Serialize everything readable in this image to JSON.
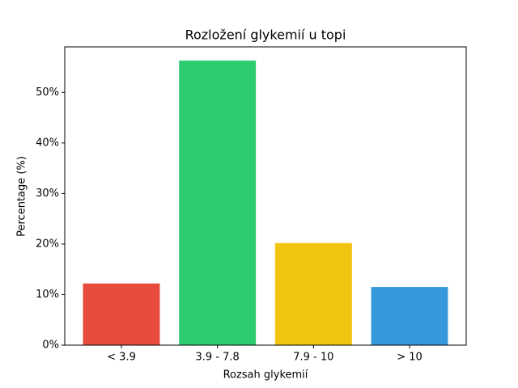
{
  "chart_data": {
    "type": "bar",
    "title": "Rozložení glykemií u  topi",
    "x_label": "Rozsah glykemií",
    "y_label": "Percentage (%)",
    "categories": [
      "< 3.9",
      "3.9 - 7.8",
      "7.9 - 10",
      "> 10"
    ],
    "values": [
      12.2,
      56.3,
      20.2,
      11.5
    ],
    "colors": [
      "#e74c3c",
      "#2ecc71",
      "#f1c40f",
      "#3498db"
    ],
    "ylim": [
      0,
      59
    ],
    "yticks": [
      {
        "value": 0,
        "label": "0%"
      },
      {
        "value": 10,
        "label": "10%"
      },
      {
        "value": 20,
        "label": "20%"
      },
      {
        "value": 30,
        "label": "30%"
      },
      {
        "value": 40,
        "label": "40%"
      },
      {
        "value": 50,
        "label": "50%"
      }
    ],
    "grid": false
  }
}
